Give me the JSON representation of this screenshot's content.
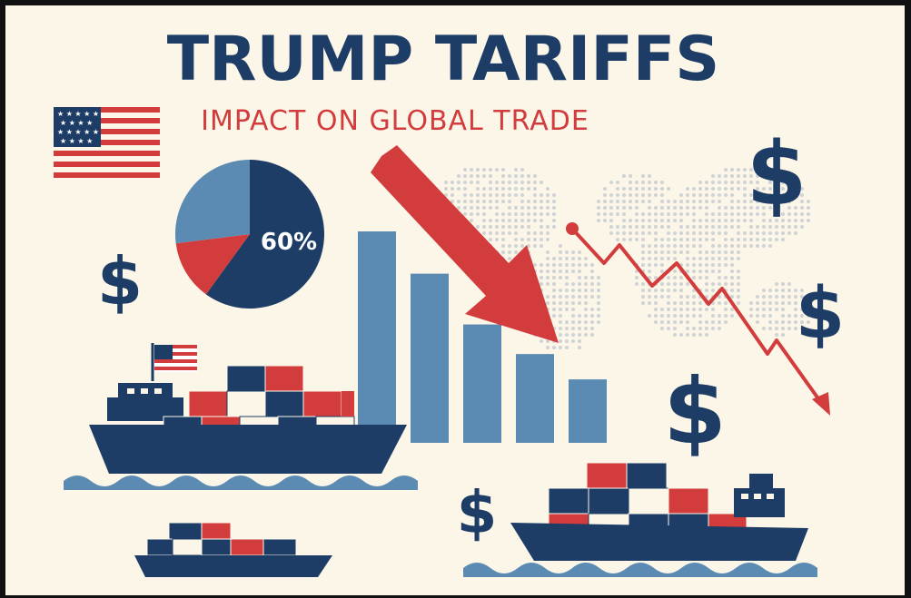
{
  "title": "TRUMP TARIFFS",
  "subtitle": "IMPACT ON GLOBAL TRADE",
  "pie": {
    "label": "60%",
    "slices": [
      {
        "name": "navy",
        "value": 60,
        "color": "#1d3d66"
      },
      {
        "name": "red",
        "value": 13,
        "color": "#d23c3c"
      },
      {
        "name": "light",
        "value": 27,
        "color": "#5b8ab3"
      }
    ]
  },
  "bars": {
    "values": [
      100,
      80,
      56,
      42,
      30
    ],
    "color": "#5b8ab3"
  },
  "dollar_sign": "$",
  "colors": {
    "background": "#fcf6e9",
    "navy": "#1d3d66",
    "red": "#d23c3c",
    "light_blue": "#5b8ab3",
    "frame": "#111111"
  }
}
